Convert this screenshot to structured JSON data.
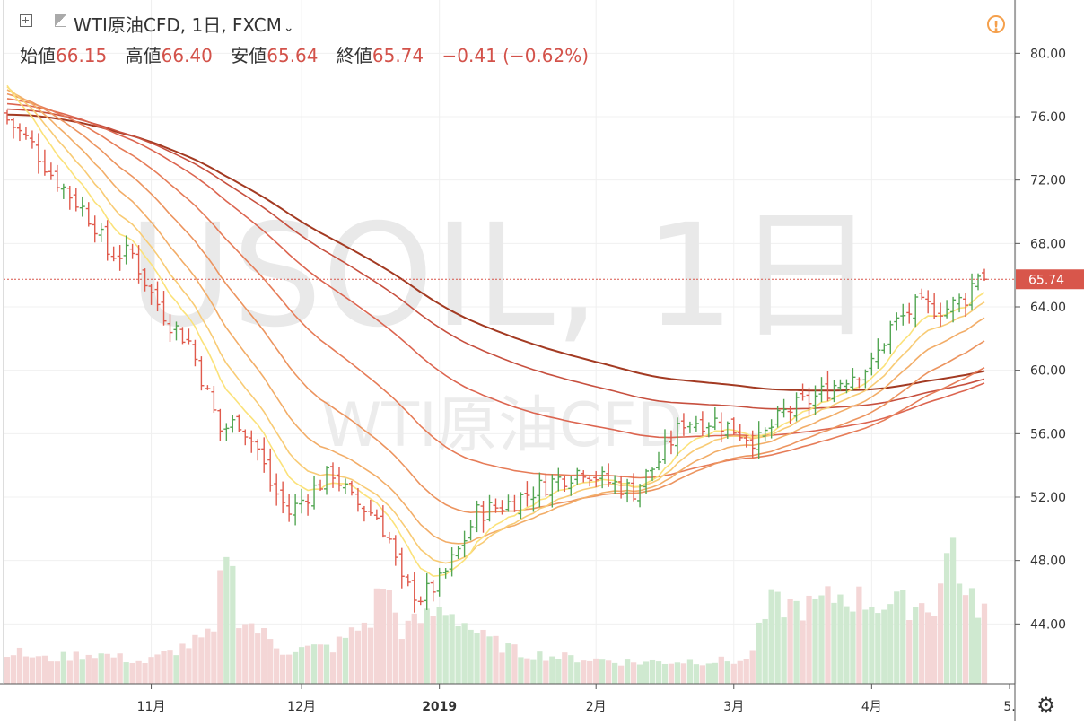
{
  "header": {
    "symbol": "WTI原油CFD, 1日, FXCM",
    "chevron": "⌄",
    "open_label": "始値",
    "open_value": "66.15",
    "high_label": "高値",
    "high_value": "66.40",
    "low_label": "安値",
    "low_value": "65.64",
    "close_label": "終値",
    "close_value": "65.74",
    "change": "−0.41 (−0.62%)",
    "alert_icon": "exclamation-circle-icon",
    "settings_icon": "gear-icon"
  },
  "watermark": {
    "symbol": "USOIL, 1日",
    "name": "WTI原油CFD"
  },
  "colors": {
    "up": "#53a653",
    "down": "#e05a4c",
    "vol_up": "#cfe9d0",
    "vol_down": "#f4d6d6",
    "ribbon": [
      "#fbe27a",
      "#f8cb75",
      "#f2ad68",
      "#ec945f",
      "#e67c58",
      "#dc6550",
      "#c7503f",
      "#a33a22"
    ],
    "last_price_bg": "#d8564b",
    "grid": "#f0f0f0"
  },
  "chart_data": {
    "type": "candlestick",
    "instrument": "WTI原油CFD",
    "interval": "1日",
    "ylim": [
      40,
      82
    ],
    "y_ticks": [
      "80.00",
      "76.00",
      "72.00",
      "68.00",
      "64.00",
      "60.00",
      "56.00",
      "52.00",
      "48.00",
      "44.00"
    ],
    "last_price": "65.74",
    "x_ticks": [
      {
        "label": "11月",
        "bar": 23
      },
      {
        "label": "12月",
        "bar": 47
      },
      {
        "label": "2019",
        "bar": 69
      },
      {
        "label": "2月",
        "bar": 94
      },
      {
        "label": "3月",
        "bar": 116
      },
      {
        "label": "4月",
        "bar": 138
      },
      {
        "label": "5.",
        "bar": 161
      }
    ],
    "bars_count": 157,
    "close_anchors": [
      [
        0,
        75.8
      ],
      [
        4,
        74.2
      ],
      [
        7,
        72.4
      ],
      [
        9,
        71.5
      ],
      [
        12,
        70.2
      ],
      [
        14,
        69.2
      ],
      [
        16,
        67.4
      ],
      [
        20,
        67.3
      ],
      [
        23,
        64.8
      ],
      [
        26,
        63.0
      ],
      [
        29,
        61.8
      ],
      [
        31,
        59.6
      ],
      [
        34,
        56.2
      ],
      [
        37,
        56.8
      ],
      [
        40,
        55.0
      ],
      [
        42,
        52.8
      ],
      [
        45,
        51.0
      ],
      [
        48,
        52.2
      ],
      [
        52,
        53.6
      ],
      [
        55,
        51.8
      ],
      [
        59,
        50.8
      ],
      [
        61,
        49.3
      ],
      [
        63,
        46.5
      ],
      [
        66,
        45.7
      ],
      [
        69,
        46.6
      ],
      [
        72,
        48.6
      ],
      [
        75,
        51.0
      ],
      [
        80,
        51.6
      ],
      [
        86,
        52.8
      ],
      [
        92,
        53.8
      ],
      [
        95,
        53.1
      ],
      [
        100,
        52.4
      ],
      [
        104,
        54.3
      ],
      [
        108,
        56.8
      ],
      [
        113,
        56.8
      ],
      [
        116,
        56.3
      ],
      [
        120,
        55.5
      ],
      [
        124,
        57.3
      ],
      [
        129,
        58.3
      ],
      [
        134,
        59.6
      ],
      [
        138,
        60.3
      ],
      [
        141,
        62.7
      ],
      [
        145,
        64.0
      ],
      [
        150,
        63.9
      ],
      [
        153,
        64.6
      ],
      [
        155,
        66.2
      ],
      [
        156,
        65.7
      ]
    ],
    "volume_anchors": [
      [
        0,
        0.22
      ],
      [
        6,
        0.16
      ],
      [
        14,
        0.2
      ],
      [
        22,
        0.14
      ],
      [
        28,
        0.24
      ],
      [
        33,
        0.32
      ],
      [
        35,
        0.95
      ],
      [
        37,
        0.45
      ],
      [
        44,
        0.22
      ],
      [
        52,
        0.24
      ],
      [
        58,
        0.42
      ],
      [
        60,
        0.68
      ],
      [
        63,
        0.35
      ],
      [
        70,
        0.5
      ],
      [
        76,
        0.3
      ],
      [
        82,
        0.2
      ],
      [
        90,
        0.17
      ],
      [
        100,
        0.14
      ],
      [
        110,
        0.15
      ],
      [
        118,
        0.15
      ],
      [
        122,
        0.52
      ],
      [
        128,
        0.5
      ],
      [
        133,
        0.58
      ],
      [
        140,
        0.52
      ],
      [
        148,
        0.52
      ],
      [
        151,
        0.95
      ],
      [
        153,
        0.55
      ],
      [
        156,
        0.5
      ]
    ],
    "moving_average_ribbon_periods": [
      8,
      13,
      21,
      34,
      55,
      89,
      120,
      144
    ],
    "volume_visible": true
  }
}
